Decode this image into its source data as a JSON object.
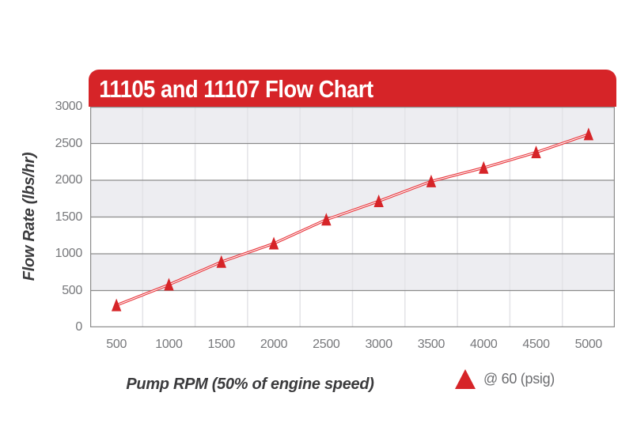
{
  "page": {
    "background": "#ffffff"
  },
  "header": {
    "title": "11105 and 11107 Flow Chart",
    "background": "#d62428",
    "text_color": "#ffffff"
  },
  "chart_data": {
    "type": "line",
    "title": "11105 and 11107 Flow Chart",
    "xlabel": "Pump RPM (50% of engine speed)",
    "ylabel": "Flow Rate (lbs/hr)",
    "categories": [
      500,
      1000,
      1500,
      2000,
      2500,
      3000,
      3500,
      4000,
      4500,
      5000
    ],
    "series": [
      {
        "name": "@ 60 (psig)",
        "values": [
          300,
          580,
          890,
          1140,
          1465,
          1715,
          1985,
          2170,
          2380,
          2625
        ],
        "marker": "triangle",
        "color": "#d62428",
        "line_color": "#e8383e"
      }
    ],
    "ylim": [
      0,
      3000
    ],
    "yticks": [
      0,
      500,
      1000,
      1500,
      2000,
      2500,
      3000
    ],
    "grid": "alternating horizontal bands with faint vertical column separators",
    "band_colors": [
      "#ededf1",
      "#ffffff"
    ],
    "gridline_color": "#8c8c8c",
    "vline_color": "#e3e3e7",
    "tick_color": "#77787b",
    "legend_position": "bottom-right"
  },
  "legend": {
    "label": "@ 60 (psig)"
  }
}
